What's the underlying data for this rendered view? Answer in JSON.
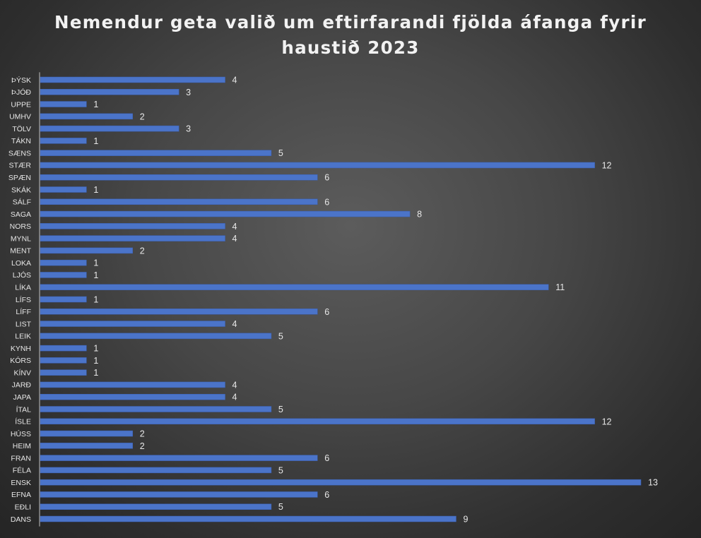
{
  "chart_data": {
    "type": "bar",
    "orientation": "horizontal",
    "title_lines": [
      "Nemendur geta valið um eftirfarandi fjölda áfanga fyrir",
      "haustið 2023"
    ],
    "categories": [
      "ÞÝSK",
      "ÞJÓÐ",
      "UPPE",
      "UMHV",
      "TÖLV",
      "TÁKN",
      "SÆNS",
      "STÆR",
      "SPÆN",
      "SKÁK",
      "SÁLF",
      "SAGA",
      "NORS",
      "MYNL",
      "MENT",
      "LOKA",
      "LJÓS",
      "LÍKA",
      "LÍFS",
      "LÍFF",
      "LIST",
      "LEIK",
      "KYNH",
      "KÓRS",
      "KÍNV",
      "JARÐ",
      "JAPA",
      "ÍTAL",
      "ÍSLE",
      "HÚSS",
      "HEIM",
      "FRAN",
      "FÉLA",
      "ENSK",
      "EFNA",
      "EÐLI",
      "DANS"
    ],
    "values": [
      4,
      3,
      1,
      2,
      3,
      1,
      5,
      12,
      6,
      1,
      6,
      8,
      4,
      4,
      2,
      1,
      1,
      11,
      1,
      6,
      4,
      5,
      1,
      1,
      1,
      4,
      4,
      5,
      12,
      2,
      2,
      6,
      5,
      13,
      6,
      5,
      9
    ],
    "xlim": [
      0,
      13
    ],
    "grid": false,
    "legend": "none",
    "data_labels": true,
    "colors": {
      "bar": "#4b74c9",
      "text": "#e8e8e8",
      "background": "#3a3a3a"
    }
  }
}
